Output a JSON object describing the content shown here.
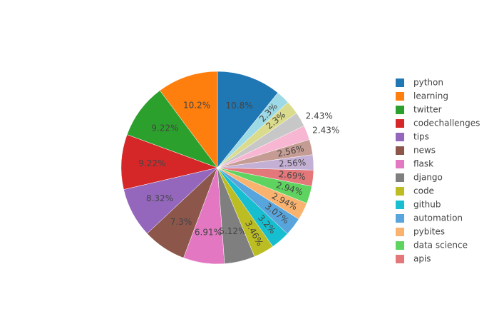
{
  "chart_data": {
    "type": "pie",
    "categories": [
      "python",
      "learning",
      "twitter",
      "codechallenges",
      "tips",
      "news",
      "flask",
      "django",
      "code",
      "github",
      "automation",
      "pybites",
      "data science",
      "apis",
      null,
      null,
      null,
      null,
      null,
      null
    ],
    "values": [
      10.8,
      10.2,
      9.22,
      9.22,
      8.32,
      7.3,
      6.91,
      5.12,
      3.46,
      3.2,
      3.07,
      2.94,
      2.94,
      2.69,
      2.56,
      2.56,
      2.43,
      2.43,
      2.3,
      2.3
    ],
    "value_labels": [
      "10.8%",
      "10.2%",
      "9.22%",
      "9.22%",
      "8.32%",
      "7.3%",
      "6.91%",
      "5.12%",
      "3.46%",
      "3.2%",
      "3.07%",
      "2.94%",
      "2.94%",
      "2.69%",
      "2.56%",
      "2.56%",
      "2.43%",
      "2.43%",
      "2.3%",
      "2.3%"
    ],
    "colors": [
      "#1f77b4",
      "#ff7f0e",
      "#2ca02c",
      "#d62728",
      "#9467bd",
      "#8c564b",
      "#e377c2",
      "#7f7f7f",
      "#bcbd22",
      "#17becf",
      "#57a5dc",
      "#f9b36f",
      "#5fd35f",
      "#e3777a",
      "#c5b0d5",
      "#c49c94",
      "#f7b6d2",
      "#c7c7c7",
      "#dbdb8d",
      "#9edae5"
    ]
  }
}
